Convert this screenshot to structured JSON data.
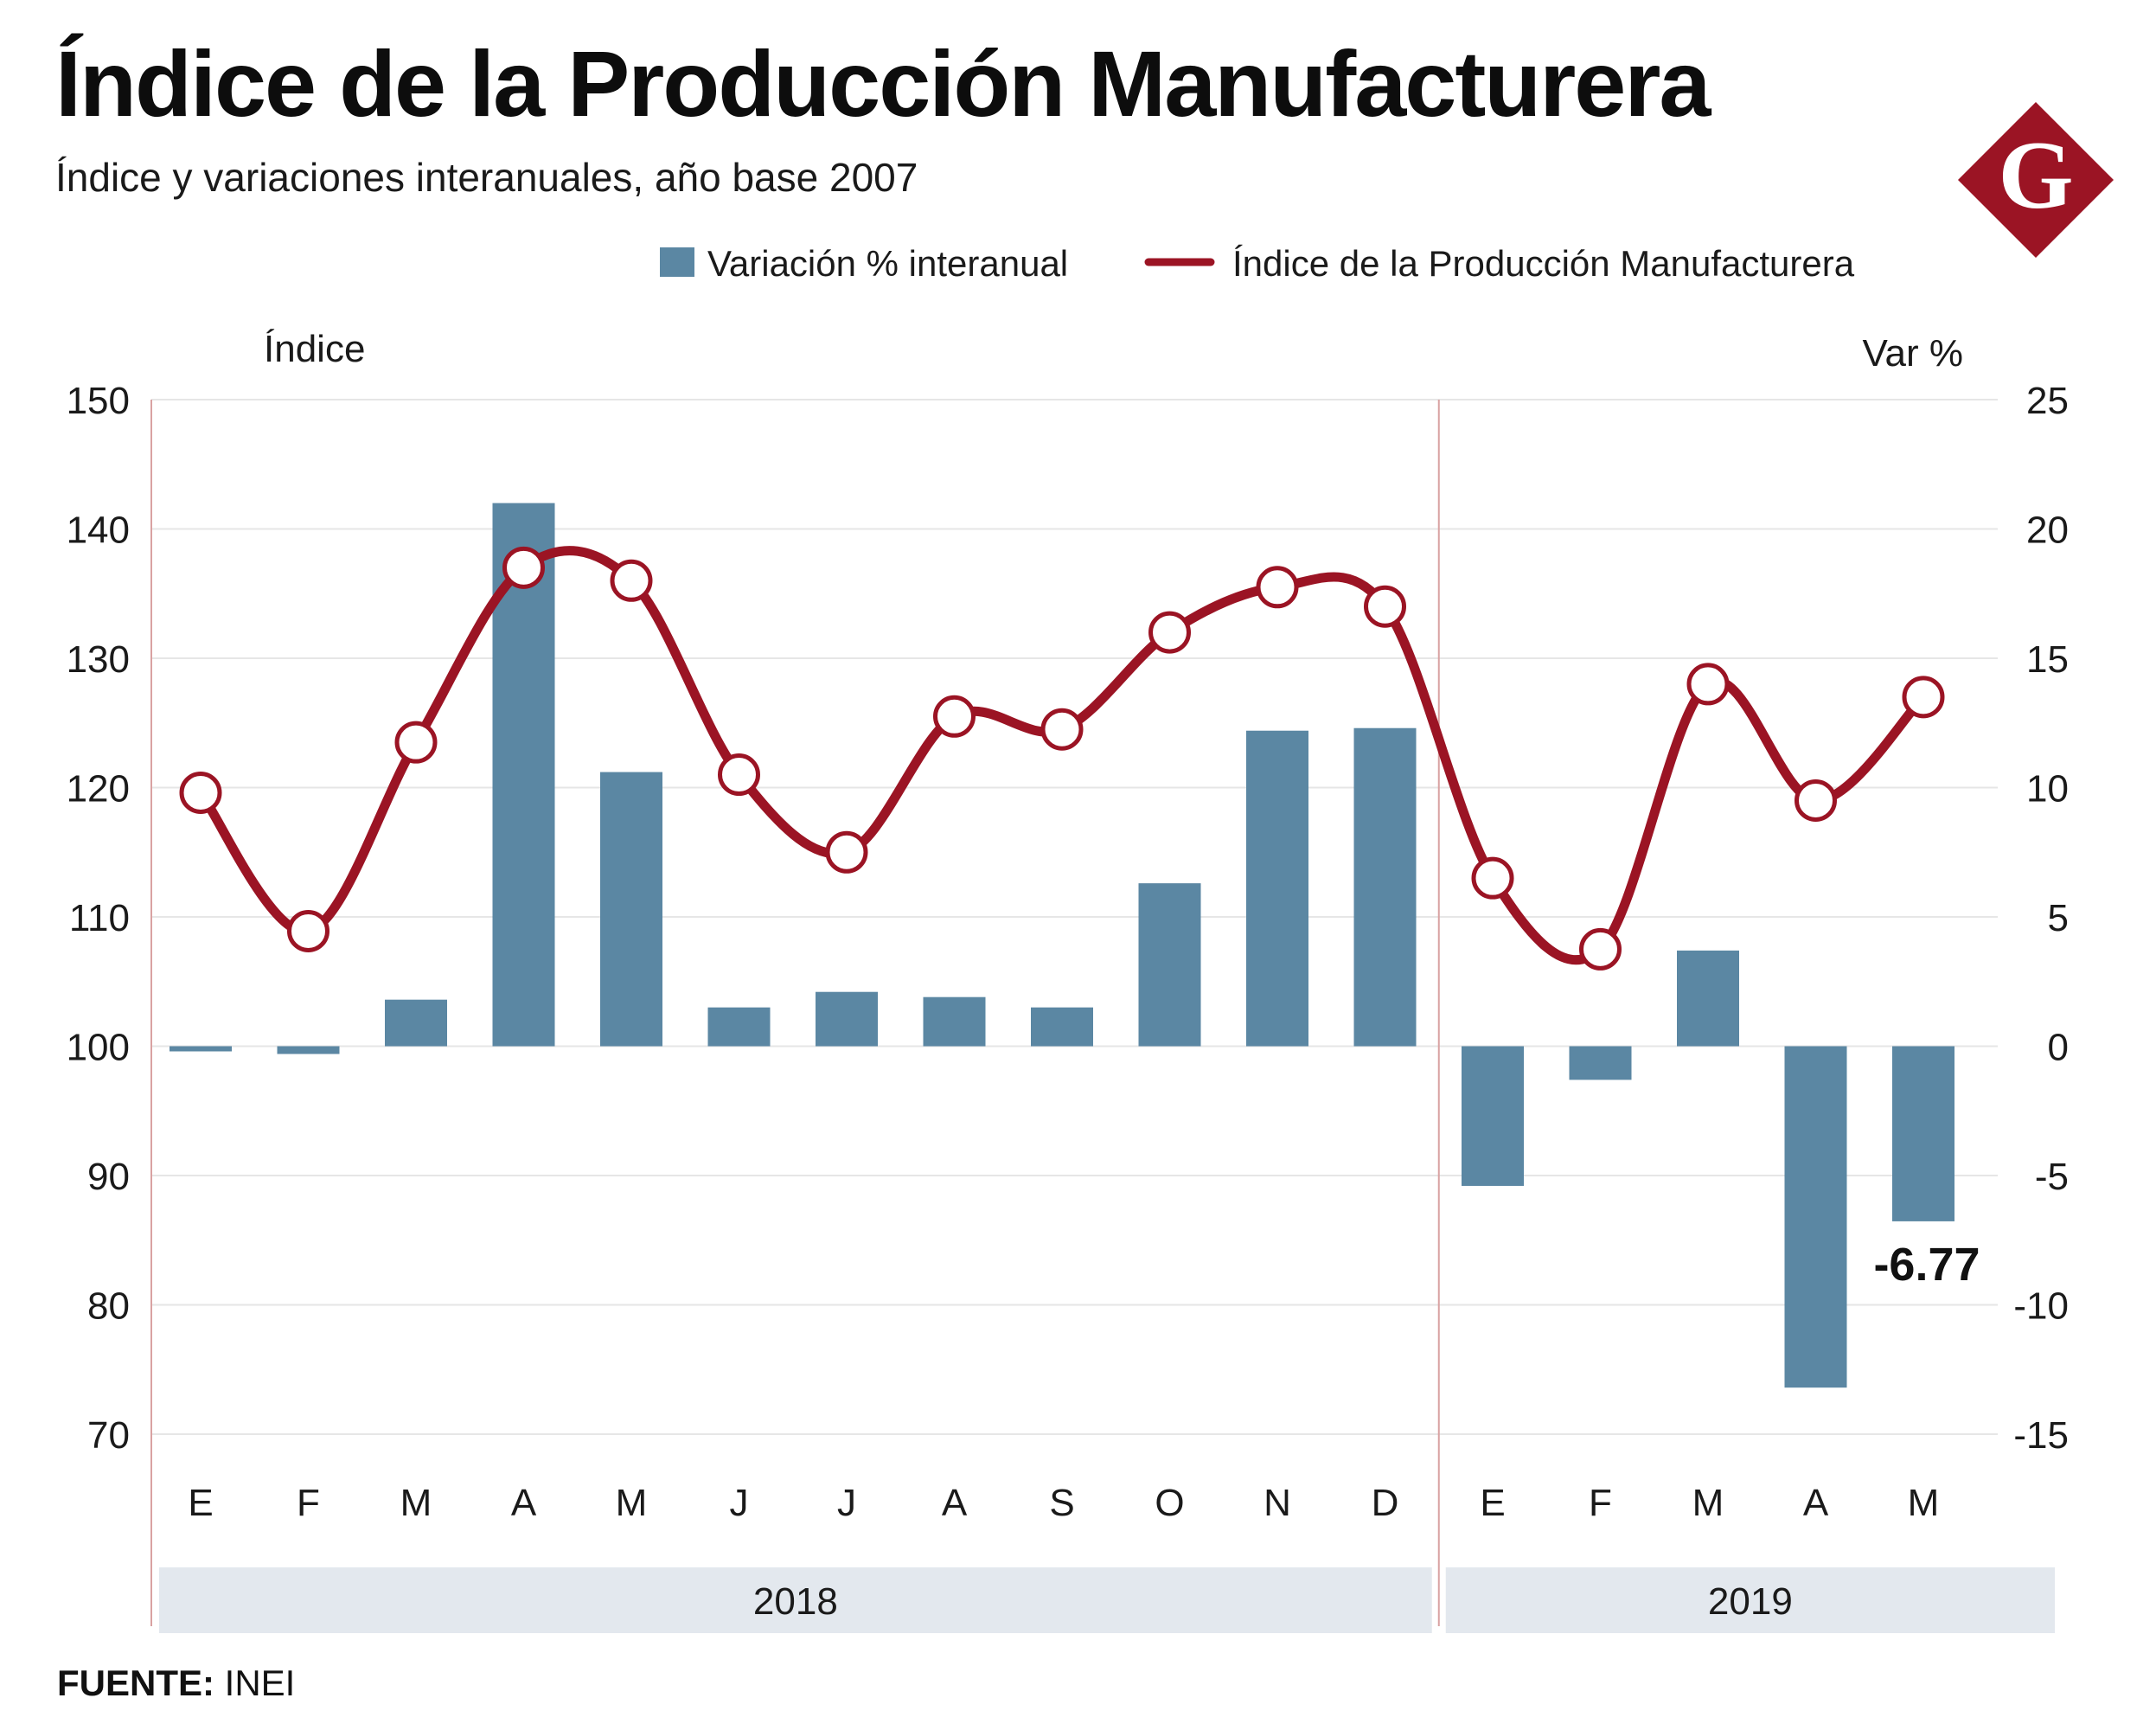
{
  "header": {
    "title": "Índice de la Producción Manufacturera",
    "subtitle": "Índice y variaciones interanuales, año base 2007",
    "logo_letter": "G"
  },
  "source": {
    "label": "FUENTE:",
    "value": "INEI"
  },
  "colors": {
    "bar": "#5b87a3",
    "line": "#9b1424",
    "year_band": "#e3e8ee",
    "grid": "#e6e6e6",
    "divider": "#d9a2a2"
  },
  "chart_data": {
    "type": "bar+line",
    "title": "Índice de la Producción Manufacturera",
    "categories": [
      "E",
      "F",
      "M",
      "A",
      "M",
      "J",
      "J",
      "A",
      "S",
      "O",
      "N",
      "D",
      "E",
      "F",
      "M",
      "A",
      "M"
    ],
    "years": [
      {
        "label": "2018",
        "from": 0,
        "to": 11
      },
      {
        "label": "2019",
        "from": 12,
        "to": 16
      }
    ],
    "left_axis": {
      "label": "Índice",
      "min": 70,
      "max": 150,
      "ticks": [
        150,
        140,
        130,
        120,
        110,
        100,
        90,
        80,
        70
      ]
    },
    "right_axis": {
      "label": "Var %",
      "min": -15,
      "max": 25,
      "ticks": [
        25,
        20,
        15,
        10,
        5,
        0,
        -5,
        -10,
        -15
      ]
    },
    "series": [
      {
        "name": "Variación % interanual",
        "type": "bar",
        "axis": "right",
        "values": [
          -0.2,
          -0.3,
          1.8,
          21.0,
          10.6,
          1.5,
          2.1,
          1.9,
          1.5,
          6.3,
          12.2,
          12.3,
          -5.4,
          -1.3,
          3.7,
          -13.2,
          -6.77
        ]
      },
      {
        "name": "Índice de la Producción Manufacturera",
        "type": "line",
        "axis": "left",
        "values": [
          119.6,
          108.9,
          123.5,
          137.0,
          136.0,
          121.0,
          115.0,
          125.5,
          124.5,
          132.0,
          135.5,
          134.0,
          113.0,
          107.5,
          128.0,
          119.0,
          127.0
        ]
      }
    ],
    "annotations": [
      {
        "index": 16,
        "text": "-6.77"
      }
    ]
  }
}
